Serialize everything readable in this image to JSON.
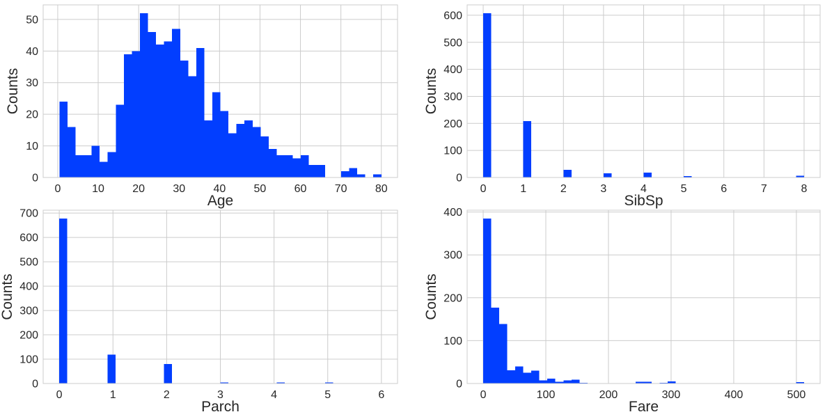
{
  "chart_data": [
    {
      "type": "bar",
      "xlabel": "Age",
      "ylabel": "Counts",
      "bin_edges_range": [
        0.42,
        80
      ],
      "values": [
        24,
        16,
        7,
        7,
        10,
        5,
        8,
        23,
        39,
        40,
        52,
        46,
        42,
        43,
        47,
        37,
        32,
        41,
        18,
        27,
        21,
        14,
        17,
        18,
        16,
        13,
        9,
        7,
        7,
        6,
        7,
        4,
        4,
        0,
        0,
        2,
        3,
        1,
        0,
        1
      ],
      "xticks": [
        "0",
        "10",
        "20",
        "30",
        "40",
        "50",
        "60",
        "70",
        "80"
      ],
      "yticks": [
        "0",
        "10",
        "20",
        "30",
        "40",
        "50"
      ],
      "xlim": [
        -3.6,
        84.0
      ],
      "ylim": [
        0,
        54.6
      ],
      "grid": true,
      "color": "#023eff"
    },
    {
      "type": "bar",
      "xlabel": "SibSp",
      "ylabel": "Counts",
      "bin_edges_range": [
        0,
        8
      ],
      "values": [
        608,
        0,
        0,
        0,
        0,
        209,
        0,
        0,
        0,
        0,
        28,
        0,
        0,
        0,
        0,
        16,
        0,
        0,
        0,
        0,
        18,
        0,
        0,
        0,
        0,
        5,
        0,
        0,
        0,
        0,
        0,
        0,
        0,
        0,
        0,
        0,
        0,
        0,
        0,
        7
      ],
      "xticks": [
        "0",
        "1",
        "2",
        "3",
        "4",
        "5",
        "6",
        "7",
        "8"
      ],
      "yticks": [
        "0",
        "100",
        "200",
        "300",
        "400",
        "500",
        "600"
      ],
      "xlim": [
        -0.4,
        8.4
      ],
      "ylim": [
        0,
        638.4
      ],
      "grid": true,
      "color": "#023eff"
    },
    {
      "type": "bar",
      "xlabel": "Parch",
      "ylabel": "Counts",
      "bin_edges_range": [
        0,
        6
      ],
      "values": [
        678,
        0,
        0,
        0,
        0,
        0,
        118,
        0,
        0,
        0,
        0,
        0,
        0,
        80,
        0,
        0,
        0,
        0,
        0,
        0,
        5,
        0,
        0,
        0,
        0,
        0,
        0,
        4,
        0,
        0,
        0,
        0,
        0,
        5,
        0,
        0,
        0,
        0,
        0,
        1
      ],
      "xticks": [
        "0",
        "1",
        "2",
        "3",
        "4",
        "5",
        "6"
      ],
      "yticks": [
        "0",
        "100",
        "200",
        "300",
        "400",
        "500",
        "600",
        "700"
      ],
      "xlim": [
        -0.3,
        6.3
      ],
      "ylim": [
        0,
        711.9
      ],
      "grid": true,
      "color": "#023eff"
    },
    {
      "type": "bar",
      "xlabel": "Fare",
      "ylabel": "Counts",
      "bin_edges_range": [
        0,
        512.3292
      ],
      "values": [
        385,
        177,
        139,
        31,
        40,
        25,
        30,
        7,
        11,
        4,
        7,
        9,
        2,
        0,
        0,
        0,
        0,
        0,
        0,
        4,
        4,
        0,
        2,
        5,
        0,
        0,
        0,
        0,
        0,
        0,
        0,
        0,
        0,
        0,
        0,
        0,
        0,
        0,
        0,
        3
      ],
      "xticks": [
        "0",
        "100",
        "200",
        "300",
        "400",
        "500"
      ],
      "yticks": [
        "0",
        "100",
        "200",
        "300",
        "400"
      ],
      "xlim": [
        -25.6,
        537.9
      ],
      "ylim": [
        0,
        404.25
      ],
      "grid": true,
      "color": "#023eff"
    }
  ]
}
